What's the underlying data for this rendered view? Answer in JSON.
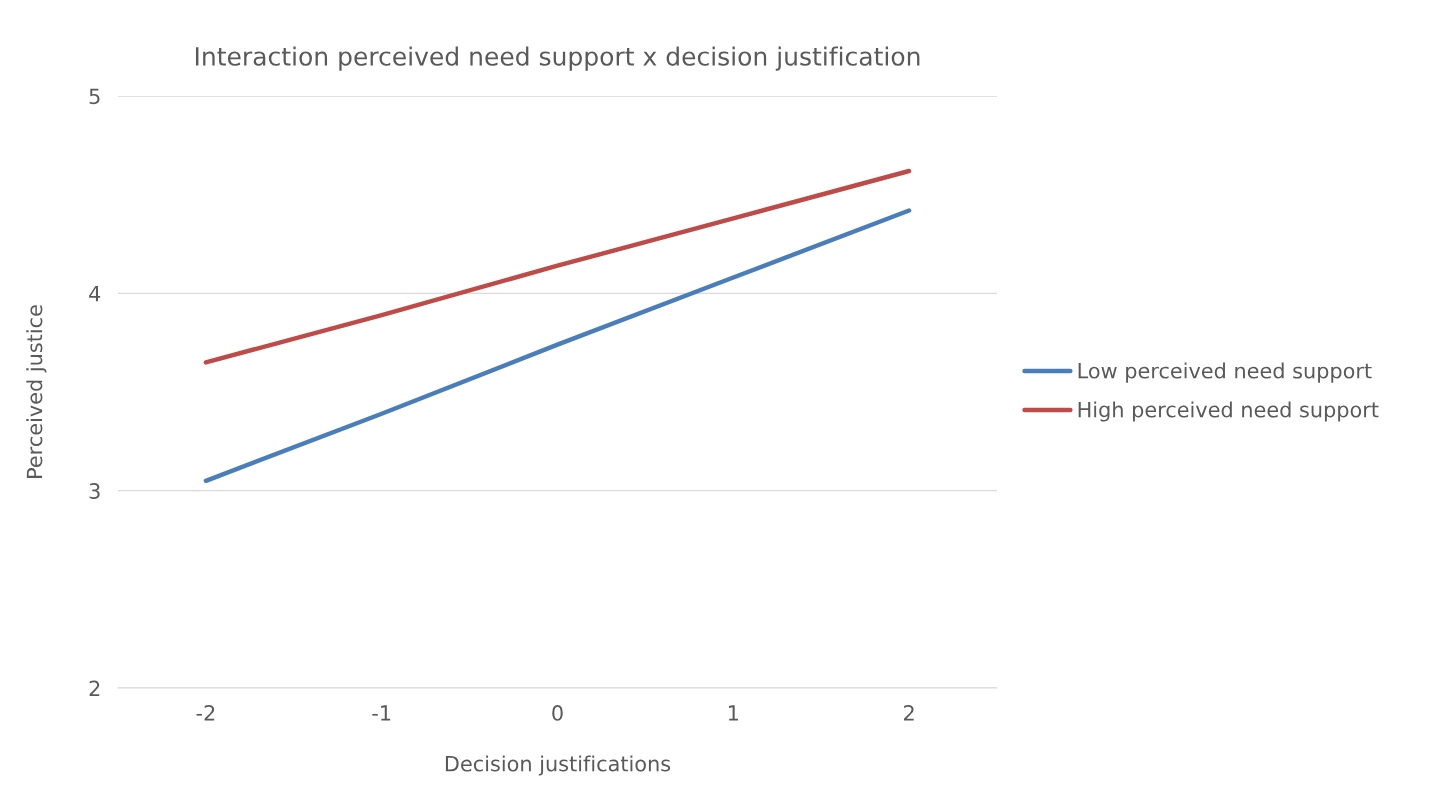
{
  "chart_data": {
    "type": "line",
    "title": "Interaction perceived need support x decision justification",
    "xlabel": "Decision justifications",
    "ylabel": "Perceived justice",
    "categories": [
      "-2",
      "-1",
      "0",
      "1",
      "2"
    ],
    "series": [
      {
        "name": "Low perceived need support",
        "color": "#4a7ebb",
        "values": [
          3.05,
          3.39,
          3.74,
          4.08,
          4.42
        ]
      },
      {
        "name": "High perceived need support",
        "color": "#be4b48",
        "values": [
          3.65,
          3.89,
          4.14,
          4.38,
          4.62
        ]
      }
    ],
    "ylim": [
      2,
      5
    ],
    "yticks": [
      2,
      3,
      4,
      5
    ],
    "grid": "y",
    "legend": "right",
    "marker": "none",
    "line_style": "solid"
  }
}
